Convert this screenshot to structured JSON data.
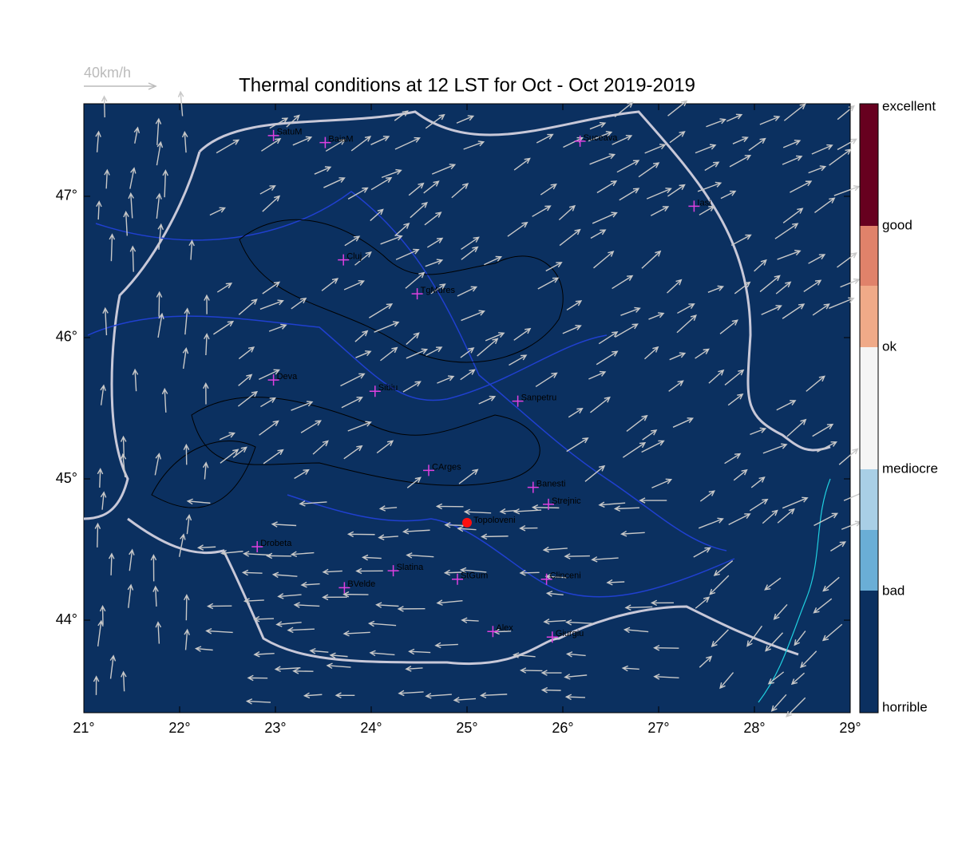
{
  "title": "Thermal conditions at 12 LST for Oct - Oct  2019-2019",
  "wind_reference": "40km/h",
  "map": {
    "xlim": [
      21,
      29
    ],
    "ylim": [
      43.345,
      47.655
    ],
    "xticks": [
      {
        "value": 21,
        "label": "21°"
      },
      {
        "value": 22,
        "label": "22°"
      },
      {
        "value": 23,
        "label": "23°"
      },
      {
        "value": 24,
        "label": "24°"
      },
      {
        "value": 25,
        "label": "25°"
      },
      {
        "value": 26,
        "label": "26°"
      },
      {
        "value": 27,
        "label": "27°"
      },
      {
        "value": 28,
        "label": "28°"
      },
      {
        "value": 29,
        "label": "29°"
      }
    ],
    "yticks": [
      {
        "value": 44,
        "label": "44°"
      },
      {
        "value": 45,
        "label": "45°"
      },
      {
        "value": 46,
        "label": "46°"
      },
      {
        "value": 47,
        "label": "47°"
      }
    ],
    "cities": [
      {
        "name": "SatuM",
        "lon": 22.98,
        "lat": 47.43
      },
      {
        "name": "BaiaM",
        "lon": 23.52,
        "lat": 47.38
      },
      {
        "name": "Suceava",
        "lon": 26.18,
        "lat": 47.39
      },
      {
        "name": "Iasi",
        "lon": 27.37,
        "lat": 46.93
      },
      {
        "name": "Cluj",
        "lon": 23.71,
        "lat": 46.55
      },
      {
        "name": "TgMures",
        "lon": 24.48,
        "lat": 46.31
      },
      {
        "name": "Deva",
        "lon": 22.98,
        "lat": 45.7
      },
      {
        "name": "Sibiu",
        "lon": 24.04,
        "lat": 45.62
      },
      {
        "name": "Sanpetru",
        "lon": 25.53,
        "lat": 45.55
      },
      {
        "name": "CArges",
        "lon": 24.6,
        "lat": 45.06
      },
      {
        "name": "Banesti",
        "lon": 25.69,
        "lat": 44.94
      },
      {
        "name": "Strejnic",
        "lon": 25.85,
        "lat": 44.82
      },
      {
        "name": "Drobeta",
        "lon": 22.81,
        "lat": 44.52
      },
      {
        "name": "Slatina",
        "lon": 24.23,
        "lat": 44.35
      },
      {
        "name": "BVelde",
        "lon": 23.72,
        "lat": 44.23
      },
      {
        "name": "StGum",
        "lon": 24.9,
        "lat": 44.29
      },
      {
        "name": "Clinceni",
        "lon": 25.83,
        "lat": 44.29
      },
      {
        "name": "Alex",
        "lon": 25.27,
        "lat": 43.92
      },
      {
        "name": "Giurgiu",
        "lon": 25.89,
        "lat": 43.88
      }
    ],
    "site": {
      "name": "Topoloveni",
      "lon": 25.0,
      "lat": 44.69
    }
  },
  "colorbar": {
    "labels": [
      "horrible",
      "bad",
      "mediocre",
      "ok",
      "good",
      "excellent"
    ]
  }
}
